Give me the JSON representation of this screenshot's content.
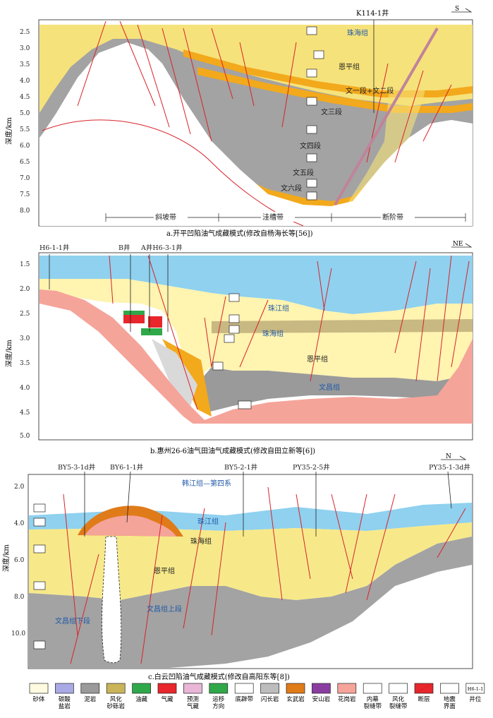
{
  "panel_a": {
    "well": "K114-1井",
    "compass": "S",
    "depth_ticks": [
      "2.5",
      "3.0",
      "3.5",
      "4.0",
      "4.5",
      "5.0",
      "5.5",
      "6.0",
      "6.5",
      "7.0",
      "7.5",
      "8.0"
    ],
    "y_axis_label": "深度/km",
    "formations": [
      "珠海组",
      "恩平组",
      "文一段+文二段",
      "文三段",
      "文四段",
      "文五段",
      "文六段"
    ],
    "zones": [
      "斜坡带",
      "洼槽带",
      "断阶带"
    ],
    "caption": "a.开平凹陷油气成藏模式(修改自杨海长等[56])"
  },
  "panel_b": {
    "wells": [
      "H6-1-1井",
      "B井",
      "A井H6-3-1井"
    ],
    "compass": "NE",
    "depth_ticks": [
      "1.5",
      "2.0",
      "2.5",
      "3.0",
      "3.5",
      "4.0",
      "4.5",
      "5.0"
    ],
    "y_axis_label": "深度/km",
    "formations": [
      "珠江组",
      "珠海组",
      "恩平组",
      "文昌组"
    ],
    "caption": "b.惠州26-6油气田油气成藏模式(修改自田立新等[6])"
  },
  "panel_c": {
    "wells": [
      "BY5-3-1d井",
      "BY6-1-1井",
      "BY5-2-1井",
      "PY35-2-5井",
      "PY35-1-3d井"
    ],
    "compass": "N",
    "depth_ticks": [
      "2.0",
      "4.0",
      "6.0",
      "8.0",
      "10.0"
    ],
    "y_axis_label": "深度/km",
    "formations": [
      "韩江组—第四系",
      "珠江组",
      "珠海组",
      "恩平组",
      "文昌组上段",
      "文昌组下段"
    ],
    "caption": "c.白云凹陷油气成藏模式(修改自高阳东等[8])"
  },
  "legend": [
    {
      "label": "砂体",
      "color": "#fffbe0"
    },
    {
      "label": "碳酸\n盐岩",
      "color": "#a9a9e6"
    },
    {
      "label": "泥岩",
      "color": "#9a9a9a"
    },
    {
      "label": "风化\n砂砾岩",
      "color": "#c9b45a"
    },
    {
      "label": "油藏",
      "color": "#2fa84a"
    },
    {
      "label": "气藏",
      "color": "#e8262c"
    },
    {
      "label": "预测\n气藏",
      "color": "#e9b6d8"
    },
    {
      "label": "运移\n方向",
      "color": "#2fa84a"
    },
    {
      "label": "底辟带",
      "color": "#ffffff"
    },
    {
      "label": "闪长岩",
      "color": "#bdbdbd"
    },
    {
      "label": "玄武岩",
      "color": "#e07b1a"
    },
    {
      "label": "安山岩",
      "color": "#8a3da0"
    },
    {
      "label": "花岗岩",
      "color": "#f5a49a"
    },
    {
      "label": "内幕\n裂缝带",
      "color": "#ffffff"
    },
    {
      "label": "风化\n裂缝带",
      "color": "#ffffff"
    },
    {
      "label": "断层",
      "color": "#e8262c"
    },
    {
      "label": "地震\n界面",
      "color": "#ffffff"
    },
    {
      "label": "井位",
      "color": "#ffffff"
    }
  ],
  "legend_sample_well": "H6-1-1"
}
